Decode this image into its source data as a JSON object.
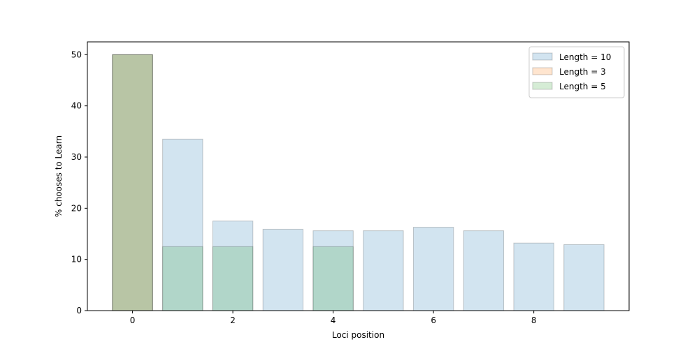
{
  "chart_data": {
    "type": "bar",
    "xlabel": "Loci position",
    "ylabel": "% chooses to Learn",
    "xlim": [
      -0.9,
      9.9
    ],
    "ylim": [
      0,
      52.5
    ],
    "xticks": [
      0,
      2,
      4,
      6,
      8
    ],
    "yticks": [
      0,
      10,
      20,
      30,
      40,
      50
    ],
    "grid": false,
    "legend_position": "top-right",
    "bar_width": 0.8,
    "series": [
      {
        "name": "Length = 10",
        "color": "#1f77b4",
        "x": [
          0,
          1,
          2,
          3,
          4,
          5,
          6,
          7,
          8,
          9
        ],
        "values": [
          50.0,
          33.5,
          17.5,
          15.9,
          15.6,
          15.6,
          16.3,
          15.6,
          13.2,
          12.9
        ]
      },
      {
        "name": "Length = 3",
        "color": "#ff7f0e",
        "x": [
          0
        ],
        "values": [
          50.0
        ]
      },
      {
        "name": "Length = 5",
        "color": "#2ca02c",
        "x": [
          0,
          1,
          2,
          4
        ],
        "values": [
          50.0,
          12.5,
          12.5,
          12.5
        ]
      }
    ]
  }
}
